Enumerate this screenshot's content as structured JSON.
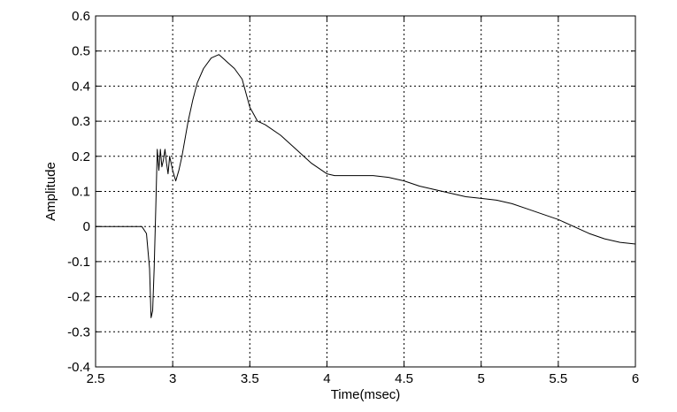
{
  "chart_data": {
    "type": "line",
    "title": "",
    "xlabel": "Time(msec)",
    "ylabel": "Amplitude",
    "xlim": [
      2.5,
      6
    ],
    "ylim": [
      -0.4,
      0.6
    ],
    "x_ticks": [
      2.5,
      3,
      3.5,
      4,
      4.5,
      5,
      5.5,
      6
    ],
    "x_tick_labels": [
      "2.5",
      "3",
      "3.5",
      "4",
      "4.5",
      "5",
      "5.5",
      "6"
    ],
    "y_ticks": [
      -0.4,
      -0.3,
      -0.2,
      -0.1,
      0,
      0.1,
      0.2,
      0.3,
      0.4,
      0.5,
      0.6
    ],
    "y_tick_labels": [
      "-0.4",
      "-0.3",
      "-0.2",
      "-0.1",
      "0",
      "0.1",
      "0.2",
      "0.3",
      "0.4",
      "0.5",
      "0.6"
    ],
    "grid": true,
    "line_color": "#000000",
    "series": [
      {
        "x": [
          2.5,
          2.7,
          2.8,
          2.83,
          2.85,
          2.86,
          2.87,
          2.88,
          2.89,
          2.9,
          2.91,
          2.92,
          2.93,
          2.94,
          2.95,
          2.96,
          2.97,
          2.98,
          2.99,
          3.0,
          3.02,
          3.04,
          3.06,
          3.08,
          3.1,
          3.13,
          3.16,
          3.2,
          3.25,
          3.3,
          3.35,
          3.4,
          3.45,
          3.5,
          3.55,
          3.6,
          3.7,
          3.8,
          3.9,
          4.0,
          4.05,
          4.1,
          4.2,
          4.3,
          4.4,
          4.5,
          4.6,
          4.7,
          4.8,
          4.9,
          5.0,
          5.1,
          5.2,
          5.3,
          5.4,
          5.5,
          5.6,
          5.7,
          5.8,
          5.9,
          6.0
        ],
        "y": [
          0.0,
          0.0,
          0.0,
          -0.02,
          -0.12,
          -0.26,
          -0.24,
          -0.12,
          0.05,
          0.22,
          0.16,
          0.22,
          0.17,
          0.19,
          0.22,
          0.18,
          0.15,
          0.2,
          0.18,
          0.16,
          0.13,
          0.16,
          0.2,
          0.25,
          0.3,
          0.36,
          0.41,
          0.45,
          0.48,
          0.49,
          0.47,
          0.45,
          0.42,
          0.34,
          0.3,
          0.29,
          0.26,
          0.22,
          0.18,
          0.15,
          0.145,
          0.145,
          0.145,
          0.145,
          0.14,
          0.13,
          0.115,
          0.105,
          0.095,
          0.085,
          0.08,
          0.075,
          0.065,
          0.05,
          0.035,
          0.02,
          0.0,
          -0.02,
          -0.035,
          -0.045,
          -0.05
        ]
      }
    ]
  }
}
